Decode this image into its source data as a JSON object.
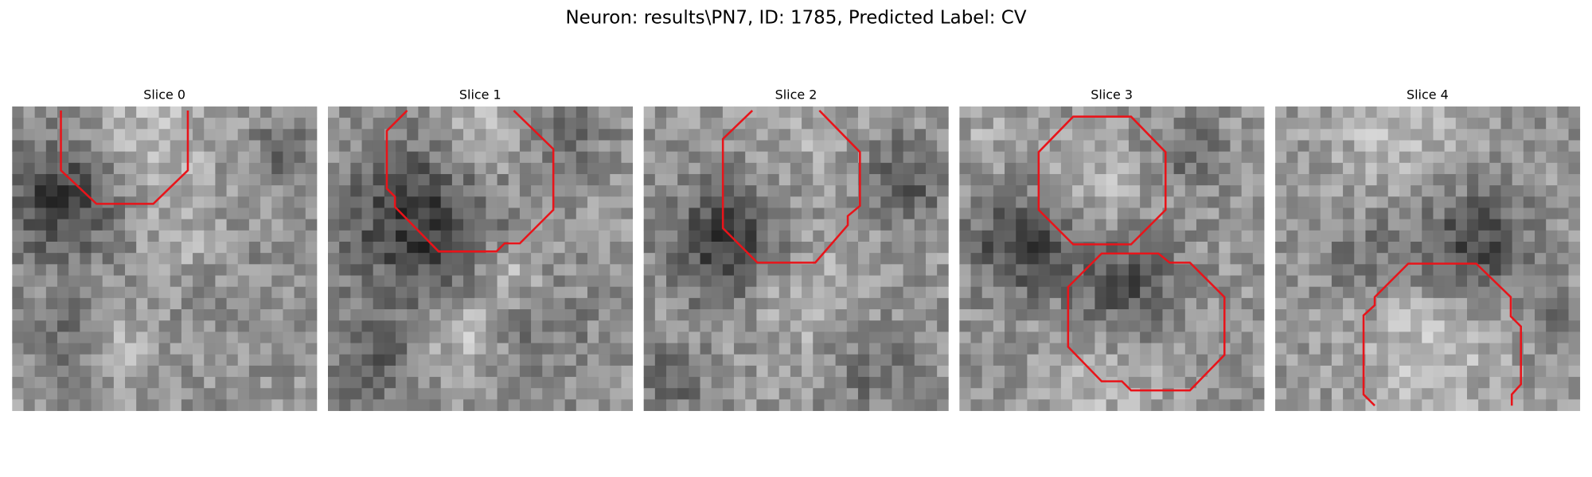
{
  "title": "Neuron: results\\PN7, ID: 1785, Predicted Label: CV",
  "panels": [
    {
      "title": "Slice 0"
    },
    {
      "title": "Slice 1"
    },
    {
      "title": "Slice 2"
    },
    {
      "title": "Slice 3"
    },
    {
      "title": "Slice 4"
    }
  ]
}
